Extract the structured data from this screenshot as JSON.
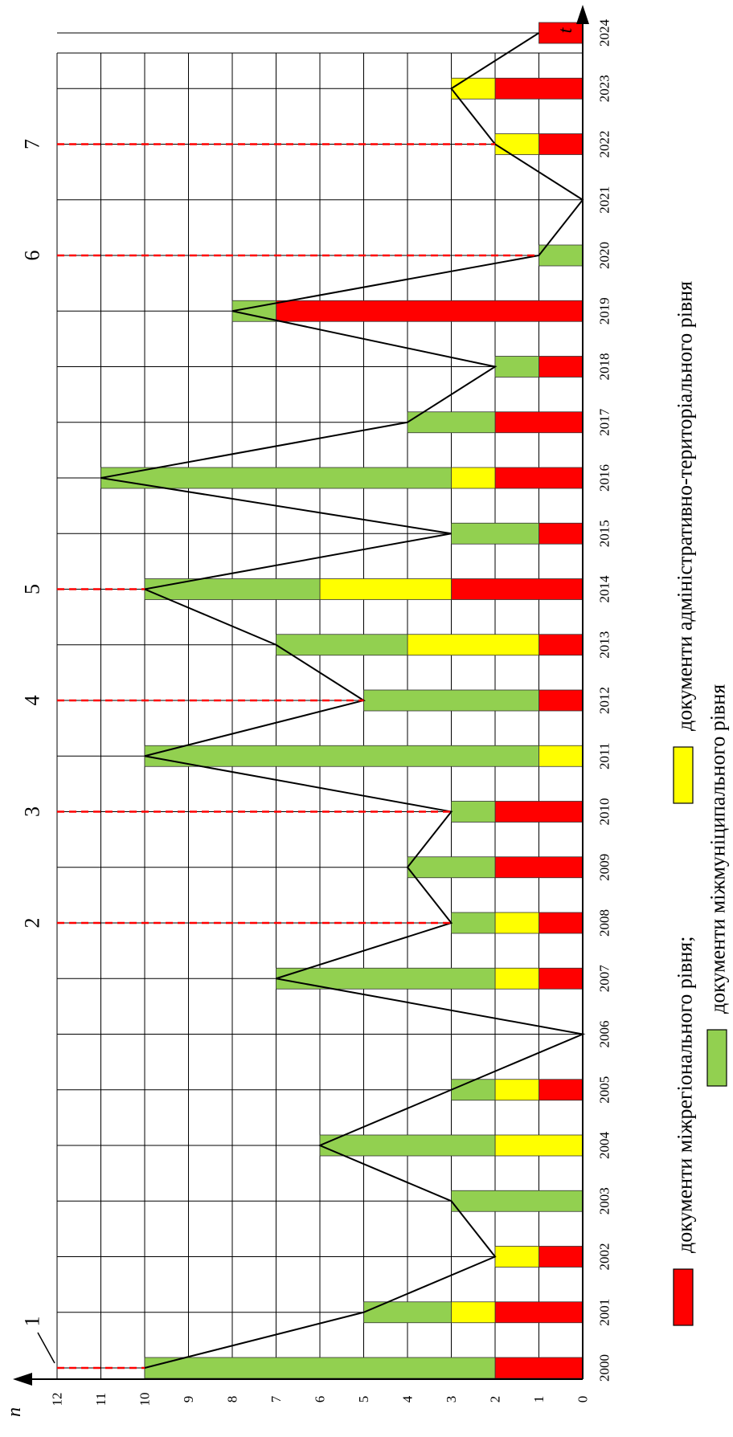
{
  "chart_data": {
    "type": "bar",
    "orientation": "rotated 90° counter-clockwise (years along vertical, count along horizontal)",
    "x_axis_name": "t",
    "y_axis_name": "n",
    "ylim": [
      0,
      12
    ],
    "y_ticks": [
      "0",
      "1",
      "2",
      "3",
      "4",
      "5",
      "6",
      "7",
      "8",
      "9",
      "10",
      "11",
      "12"
    ],
    "categories": [
      "2000",
      "2001",
      "2002",
      "2003",
      "2004",
      "2005",
      "2006",
      "2007",
      "2008",
      "2009",
      "2010",
      "2011",
      "2012",
      "2013",
      "2014",
      "2015",
      "2016",
      "2017",
      "2018",
      "2019",
      "2020",
      "2021",
      "2022",
      "2023",
      "2024"
    ],
    "stacked": true,
    "series": [
      {
        "name": "документи міжрегіонального рівня",
        "color": "#ff0000",
        "values": [
          2,
          2,
          1,
          0,
          0,
          1,
          0,
          1,
          1,
          2,
          2,
          0,
          1,
          1,
          3,
          1,
          2,
          2,
          1,
          7,
          0,
          0,
          1,
          2,
          1
        ]
      },
      {
        "name": "документи адміністративно-територіального рівня",
        "color": "#ffff00",
        "values": [
          0,
          1,
          1,
          0,
          2,
          1,
          0,
          1,
          1,
          0,
          0,
          1,
          0,
          3,
          3,
          0,
          1,
          0,
          0,
          0,
          0,
          0,
          1,
          1,
          0
        ]
      },
      {
        "name": "документи міжмуніципального рівня",
        "color": "#92d050",
        "values": [
          8,
          2,
          0,
          3,
          4,
          1,
          0,
          5,
          1,
          2,
          1,
          9,
          4,
          3,
          4,
          2,
          8,
          2,
          1,
          1,
          1,
          0,
          0,
          0,
          0
        ]
      }
    ],
    "totals_line": [
      10,
      5,
      2,
      3,
      6,
      3,
      0,
      7,
      3,
      4,
      3,
      10,
      5,
      7,
      10,
      3,
      11,
      4,
      2,
      8,
      1,
      0,
      2,
      3,
      1
    ],
    "grid": true,
    "markers": [
      {
        "label": "1",
        "category": "2000",
        "value": 10
      },
      {
        "label": "2",
        "category": "2008",
        "value": 3
      },
      {
        "label": "3",
        "category": "2010",
        "value": 3
      },
      {
        "label": "4",
        "category": "2012",
        "value": 5
      },
      {
        "label": "5",
        "category": "2014",
        "value": 10
      },
      {
        "label": "6",
        "category": "2020",
        "value": 1
      },
      {
        "label": "7",
        "category": "2022",
        "value": 2
      }
    ],
    "legend_placement": "bottom"
  }
}
